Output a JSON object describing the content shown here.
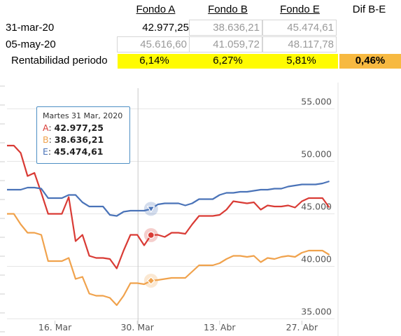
{
  "table": {
    "headers": {
      "fondo_a": "Fondo A",
      "fondo_b": "Fondo B",
      "fondo_e": "Fondo E",
      "dif": "Dif B-E"
    },
    "rows": [
      {
        "date": "31-mar-20",
        "a": "42.977,25",
        "b": "38.636,21",
        "e": "45.474,61"
      },
      {
        "date": "05-may-20",
        "a": "45.616,60",
        "b": "41.059,72",
        "e": "48.117,78"
      }
    ],
    "rent": {
      "label": "Rentabilidad periodo",
      "a": "6,14%",
      "b": "6,27%",
      "e": "5,81%",
      "dif": "0,46%"
    }
  },
  "tooltip": {
    "date": "Martes 31 Mar, 2020",
    "a_key": "A",
    "a_val": "42.977,25",
    "b_key": "B",
    "b_val": "38.636,21",
    "e_key": "E",
    "e_val": "45.474,61"
  },
  "chart_data": {
    "type": "line",
    "x_labels": [
      "16. Mar",
      "30. Mar",
      "13. Abr",
      "27. Abr"
    ],
    "y_ticks": [
      "35.000",
      "40.000",
      "45.000",
      "50.000",
      "55.000"
    ],
    "ylim": [
      34500,
      57500
    ],
    "colors": {
      "A": "#d93b35",
      "B": "#f0a24c",
      "E": "#4a73b8"
    },
    "crosshair_date": "30. Mar",
    "series": [
      {
        "name": "A",
        "values": [
          51500,
          51500,
          50800,
          48600,
          48900,
          47000,
          45000,
          45000,
          45000,
          46600,
          42400,
          43000,
          41000,
          40800,
          40800,
          40700,
          39800,
          41500,
          43000,
          43000,
          42000,
          42977,
          43000,
          42800,
          43200,
          43200,
          43100,
          44000,
          44800,
          44800,
          44800,
          44900,
          45400,
          46200,
          46100,
          46000,
          46100,
          45400,
          45800,
          45700,
          45700,
          45800,
          45600,
          46200,
          46500,
          46500,
          46500,
          45600
        ]
      },
      {
        "name": "B",
        "values": [
          45000,
          45000,
          44000,
          43200,
          43200,
          43000,
          40500,
          40500,
          40500,
          40800,
          38800,
          39000,
          37400,
          37200,
          37200,
          37000,
          36300,
          37200,
          38400,
          38400,
          38300,
          38636,
          38700,
          38800,
          38900,
          38900,
          38900,
          39500,
          40100,
          40100,
          40100,
          40300,
          40700,
          41000,
          41000,
          40900,
          41000,
          40400,
          40800,
          40700,
          40900,
          41000,
          40900,
          41300,
          41500,
          41500,
          41500,
          41100
        ]
      },
      {
        "name": "E",
        "values": [
          47300,
          47300,
          47300,
          47500,
          47500,
          47400,
          46500,
          46500,
          46500,
          46800,
          46800,
          46100,
          45700,
          45700,
          45700,
          44900,
          44800,
          45200,
          45300,
          45300,
          45300,
          45475,
          45900,
          46000,
          46000,
          46000,
          45800,
          46000,
          46400,
          46400,
          46400,
          46800,
          47000,
          47000,
          47100,
          47100,
          47200,
          47300,
          47300,
          47400,
          47400,
          47600,
          47700,
          47800,
          47800,
          47800,
          47900,
          48100
        ]
      }
    ]
  }
}
